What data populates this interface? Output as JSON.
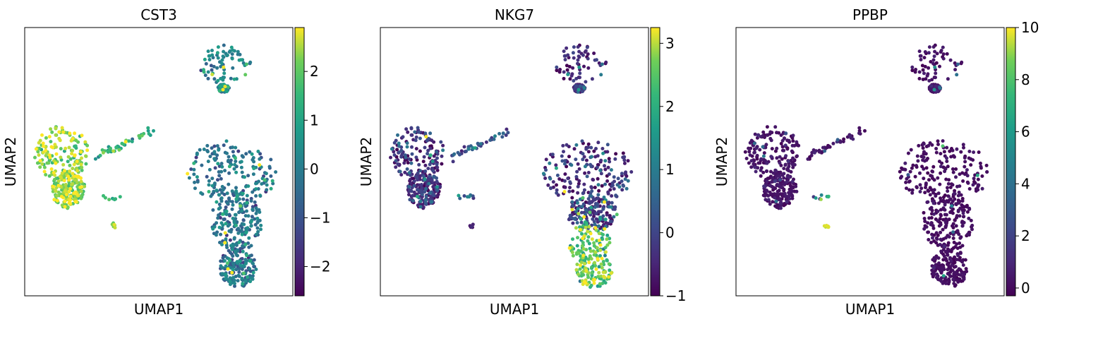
{
  "chart_data": [
    {
      "type": "scatter",
      "title": "CST3",
      "xlabel": "UMAP1",
      "ylabel": "UMAP2",
      "colormap": "viridis",
      "colorbar": {
        "range": [
          -2.6,
          2.9
        ],
        "ticks": [
          -2,
          -1,
          0,
          1,
          2
        ],
        "tick_labels": [
          "−2",
          "−1",
          "0",
          "1",
          "2"
        ]
      },
      "clusters": [
        {
          "name": "top-right",
          "value_mean": 0.0,
          "value_spread": 0.6,
          "high_fraction": 0.1
        },
        {
          "name": "large-right",
          "value_mean": -0.3,
          "value_spread": 0.6,
          "high_fraction": 0.08
        },
        {
          "name": "left-blob",
          "value_mean": 2.2,
          "value_spread": 0.5,
          "high_fraction": 0.1
        },
        {
          "name": "left-arm",
          "value_mean": 1.3,
          "value_spread": 0.6,
          "high_fraction": 0
        },
        {
          "name": "small-group",
          "value_mean": 1.5,
          "value_spread": 0.4,
          "high_fraction": 0
        },
        {
          "name": "tiny-group",
          "value_mean": 2.2,
          "value_spread": 0.3,
          "high_fraction": 0
        }
      ]
    },
    {
      "type": "scatter",
      "title": "NKG7",
      "xlabel": "UMAP1",
      "ylabel": "UMAP2",
      "colormap": "viridis",
      "colorbar": {
        "range": [
          -1.0,
          3.25
        ],
        "ticks": [
          -1,
          0,
          1,
          2,
          3
        ],
        "tick_labels": [
          "−1",
          "0",
          "1",
          "2",
          "3"
        ]
      },
      "clusters": [
        {
          "name": "top-right",
          "value_mean": -0.6,
          "value_spread": 0.4,
          "high_fraction": 0.05
        },
        {
          "name": "large-right-upper",
          "value_mean": -0.4,
          "value_spread": 0.5,
          "high_fraction": 0.15
        },
        {
          "name": "large-right-lower",
          "value_mean": 2.5,
          "value_spread": 0.6,
          "high_fraction": 0
        },
        {
          "name": "left-blob",
          "value_mean": -0.5,
          "value_spread": 0.5,
          "high_fraction": 0.1
        },
        {
          "name": "left-arm",
          "value_mean": 0.3,
          "value_spread": 0.6,
          "high_fraction": 0
        },
        {
          "name": "small-group",
          "value_mean": 0.5,
          "value_spread": 0.6,
          "high_fraction": 0
        },
        {
          "name": "tiny-group",
          "value_mean": -0.7,
          "value_spread": 0.2,
          "high_fraction": 0
        }
      ]
    },
    {
      "type": "scatter",
      "title": "PPBP",
      "xlabel": "UMAP1",
      "ylabel": "UMAP2",
      "colormap": "viridis",
      "colorbar": {
        "range": [
          -0.3,
          10
        ],
        "ticks": [
          0,
          2,
          4,
          6,
          8,
          10
        ],
        "tick_labels": [
          "0",
          "2",
          "4",
          "6",
          "8",
          "10"
        ]
      },
      "clusters": [
        {
          "name": "top-right",
          "value_mean": 0.2,
          "value_spread": 0.3,
          "high_fraction": 0.04
        },
        {
          "name": "large-right",
          "value_mean": 0.1,
          "value_spread": 0.2,
          "high_fraction": 0.02
        },
        {
          "name": "left-blob",
          "value_mean": 0.2,
          "value_spread": 0.3,
          "high_fraction": 0.04
        },
        {
          "name": "left-arm",
          "value_mean": 0.3,
          "value_spread": 0.4,
          "high_fraction": 0.05
        },
        {
          "name": "small-group",
          "value_mean": 5.0,
          "value_spread": 3.0,
          "high_fraction": 0
        },
        {
          "name": "tiny-group",
          "value_mean": 9.8,
          "value_spread": 0.2,
          "high_fraction": 0
        }
      ]
    }
  ]
}
